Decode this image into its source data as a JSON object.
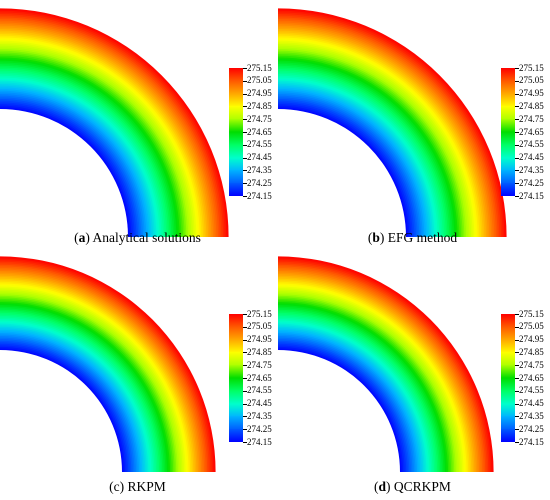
{
  "panels": [
    {
      "letter": "a",
      "caption_text": "Analytical solutions"
    },
    {
      "letter": "b",
      "caption_text": "EFG method"
    },
    {
      "letter": "c",
      "caption_text": "RKPM"
    },
    {
      "letter": "d",
      "caption_text": "QCRKPM"
    }
  ],
  "colorbar_labels": [
    "275.15",
    "275.05",
    "274.95",
    "274.85",
    "274.75",
    "274.65",
    "274.55",
    "274.45",
    "274.35",
    "274.25",
    "274.15"
  ],
  "colorbar_colors": [
    "#ff0000",
    "#ff5a00",
    "#ffaa00",
    "#ffff00",
    "#aaff00",
    "#00dd00",
    "#00ff66",
    "#00ffcc",
    "#00b4ff",
    "#005aff",
    "#0000ff"
  ],
  "chart_data": {
    "type": "heatmap",
    "value_range": [
      274.15,
      275.15
    ],
    "field": "temperature distribution on quarter-annulus domain, increasing from inner radius (274.15) to outer radius (275.15)"
  }
}
